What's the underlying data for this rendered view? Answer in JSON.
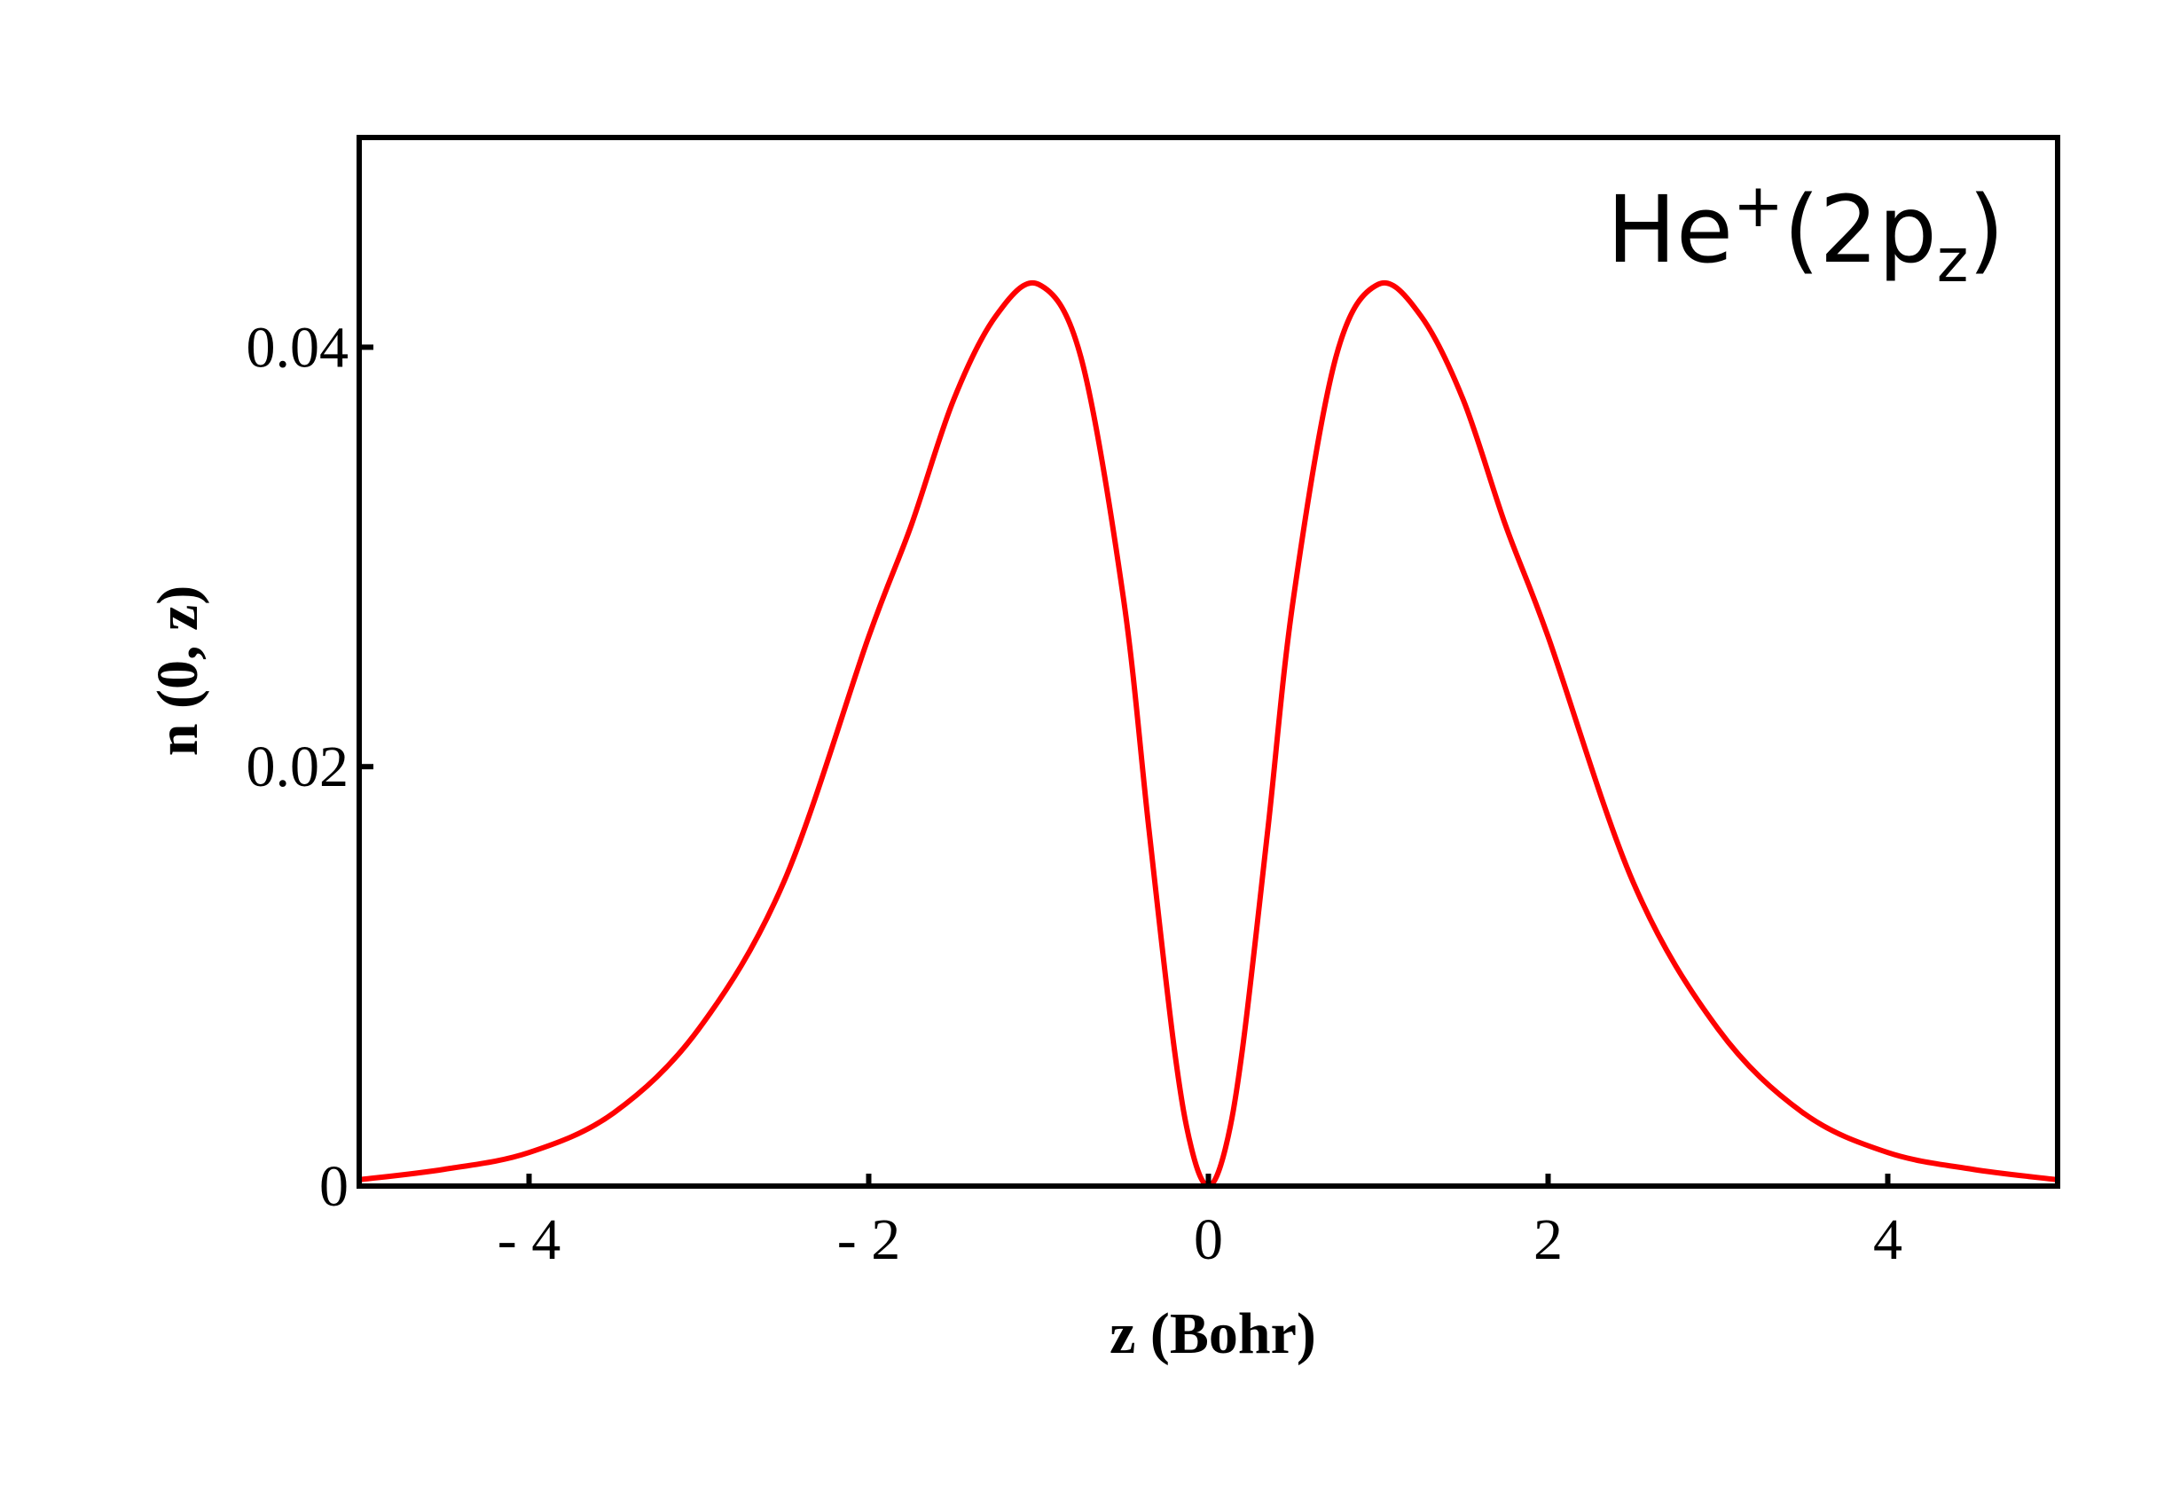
{
  "chart_data": {
    "type": "line",
    "title": "",
    "annotation": {
      "base": "He",
      "superscript": "+",
      "open": "(2p",
      "subscript": "z",
      "close": ")"
    },
    "xlabel": "z (Bohr)",
    "ylabel": "n (0, z)",
    "xlim": [
      -5,
      5
    ],
    "ylim": [
      0,
      0.05
    ],
    "xticks": [
      {
        "value": -4,
        "label": "- 4"
      },
      {
        "value": -2,
        "label": "- 2"
      },
      {
        "value": 0,
        "label": "0"
      },
      {
        "value": 2,
        "label": "2"
      },
      {
        "value": 4,
        "label": "4"
      }
    ],
    "yticks": [
      {
        "value": 0,
        "label": "0"
      },
      {
        "value": 0.02,
        "label": "0.02"
      },
      {
        "value": 0.04,
        "label": "0.04"
      }
    ],
    "grid": false,
    "legend": "none",
    "series": [
      {
        "color": "#ff0000",
        "x": [
          -5.0,
          -4.5,
          -4.0,
          -3.5,
          -3.0,
          -2.5,
          -2.0,
          -1.75,
          -1.5,
          -1.25,
          -1.0,
          -0.75,
          -0.5,
          -0.35,
          -0.2,
          -0.1,
          0.0,
          0.1,
          0.2,
          0.35,
          0.5,
          0.75,
          1.0,
          1.25,
          1.5,
          1.75,
          2.0,
          2.5,
          3.0,
          3.5,
          4.0,
          4.5,
          5.0
        ],
        "y": [
          0.0003,
          0.0008,
          0.0016,
          0.0035,
          0.0075,
          0.0145,
          0.0262,
          0.0315,
          0.0375,
          0.0415,
          0.043,
          0.0395,
          0.028,
          0.017,
          0.0065,
          0.0018,
          0.0,
          0.0018,
          0.0065,
          0.017,
          0.028,
          0.0395,
          0.043,
          0.0415,
          0.0375,
          0.0315,
          0.0262,
          0.0145,
          0.0075,
          0.0035,
          0.0016,
          0.0008,
          0.0003
        ]
      }
    ]
  }
}
